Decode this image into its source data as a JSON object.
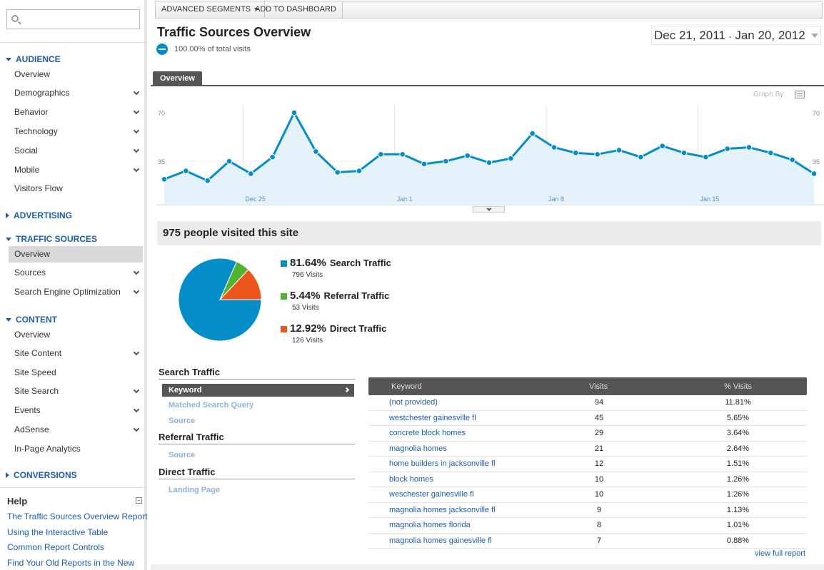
{
  "sidebar": {
    "search_placeholder": "",
    "sections": [
      {
        "label": "AUDIENCE",
        "expanded": true,
        "items": [
          {
            "label": "Overview",
            "chevron": false
          },
          {
            "label": "Demographics",
            "chevron": true
          },
          {
            "label": "Behavior",
            "chevron": true
          },
          {
            "label": "Technology",
            "chevron": true
          },
          {
            "label": "Social",
            "chevron": true
          },
          {
            "label": "Mobile",
            "chevron": true
          },
          {
            "label": "Visitors Flow",
            "chevron": false
          }
        ]
      },
      {
        "label": "ADVERTISING",
        "expanded": false,
        "items": []
      },
      {
        "label": "TRAFFIC SOURCES",
        "expanded": true,
        "items": [
          {
            "label": "Overview",
            "chevron": false,
            "active": true
          },
          {
            "label": "Sources",
            "chevron": true
          },
          {
            "label": "Search Engine Optimization",
            "chevron": true
          }
        ]
      },
      {
        "label": "CONTENT",
        "expanded": true,
        "items": [
          {
            "label": "Overview",
            "chevron": false
          },
          {
            "label": "Site Content",
            "chevron": true
          },
          {
            "label": "Site Speed",
            "chevron": false
          },
          {
            "label": "Site Search",
            "chevron": true
          },
          {
            "label": "Events",
            "chevron": true
          },
          {
            "label": "AdSense",
            "chevron": true
          },
          {
            "label": "In-Page Analytics",
            "chevron": false
          }
        ]
      },
      {
        "label": "CONVERSIONS",
        "expanded": false,
        "items": []
      }
    ],
    "help": {
      "title": "Help",
      "links": [
        "The Traffic Sources Overview Report",
        "Using the Interactive Table",
        "Common Report Controls",
        "Find Your Old Reports in the New"
      ]
    }
  },
  "toolbar": {
    "advanced_segments": "ADVANCED SEGMENTS",
    "add_to_dashboard": "ADD TO DASHBOARD"
  },
  "header": {
    "title": "Traffic Sources Overview",
    "percent_total": "100.00% of total visits",
    "date_start": "Dec 21, 2011",
    "date_sep": "-",
    "date_end": "Jan 20, 2012"
  },
  "tabs": {
    "overview": "Overview"
  },
  "graph_by_label": "Graph By:",
  "chart_data": {
    "type": "area",
    "y_tick_labels": [
      "70",
      "35"
    ],
    "ylim": [
      0,
      70
    ],
    "x_tick_labels": [
      {
        "label": "Dec 25",
        "index": 4
      },
      {
        "label": "Jan 1",
        "index": 11
      },
      {
        "label": "Jan 8",
        "index": 18
      },
      {
        "label": "Jan 15",
        "index": 25
      }
    ],
    "values": [
      22,
      28,
      21,
      35,
      26,
      38,
      70,
      42,
      27,
      28,
      40,
      40,
      33,
      35,
      39,
      34,
      37,
      55,
      45,
      41,
      40,
      43,
      38,
      46,
      41,
      38,
      44,
      45,
      41,
      36,
      26
    ],
    "color": "#058dc7"
  },
  "visit_summary": "975 people visited this site",
  "pie": {
    "slices": [
      {
        "name": "Search Traffic",
        "percent": "81.64%",
        "value": 81.64,
        "visits": "796 Visits",
        "color": "#058dc7"
      },
      {
        "name": "Referral Traffic",
        "percent": "5.44%",
        "value": 5.44,
        "visits": "53 Visits",
        "color": "#50b432"
      },
      {
        "name": "Direct Traffic",
        "percent": "12.92%",
        "value": 12.92,
        "visits": "126 Visits",
        "color": "#ed561b"
      }
    ]
  },
  "side_nav": {
    "search_traffic": "Search Traffic",
    "keyword": "Keyword",
    "matched_search_query": "Matched Search Query",
    "source_1": "Source",
    "referral_traffic": "Referral Traffic",
    "source_2": "Source",
    "direct_traffic": "Direct Traffic",
    "landing_page": "Landing Page"
  },
  "table": {
    "headers": {
      "keyword": "Keyword",
      "visits": "Visits",
      "pct_visits": "% Visits"
    },
    "rows": [
      {
        "keyword": "(not provided)",
        "visits": "94",
        "pct": "11.81%"
      },
      {
        "keyword": "westchester gainesville fl",
        "visits": "45",
        "pct": "5.65%"
      },
      {
        "keyword": "concrete block homes",
        "visits": "29",
        "pct": "3.64%"
      },
      {
        "keyword": "magnolia homes",
        "visits": "21",
        "pct": "2.64%"
      },
      {
        "keyword": "home builders in jacksonville fl",
        "visits": "12",
        "pct": "1.51%"
      },
      {
        "keyword": "block homes",
        "visits": "10",
        "pct": "1.26%"
      },
      {
        "keyword": "weschester gainesville fl",
        "visits": "10",
        "pct": "1.26%"
      },
      {
        "keyword": "magnolia homes jacksonville fl",
        "visits": "9",
        "pct": "1.13%"
      },
      {
        "keyword": "magnolia homes florida",
        "visits": "8",
        "pct": "1.01%"
      },
      {
        "keyword": "magnolia homes gainesville fl",
        "visits": "7",
        "pct": "0.88%"
      }
    ],
    "view_full": "view full report"
  }
}
